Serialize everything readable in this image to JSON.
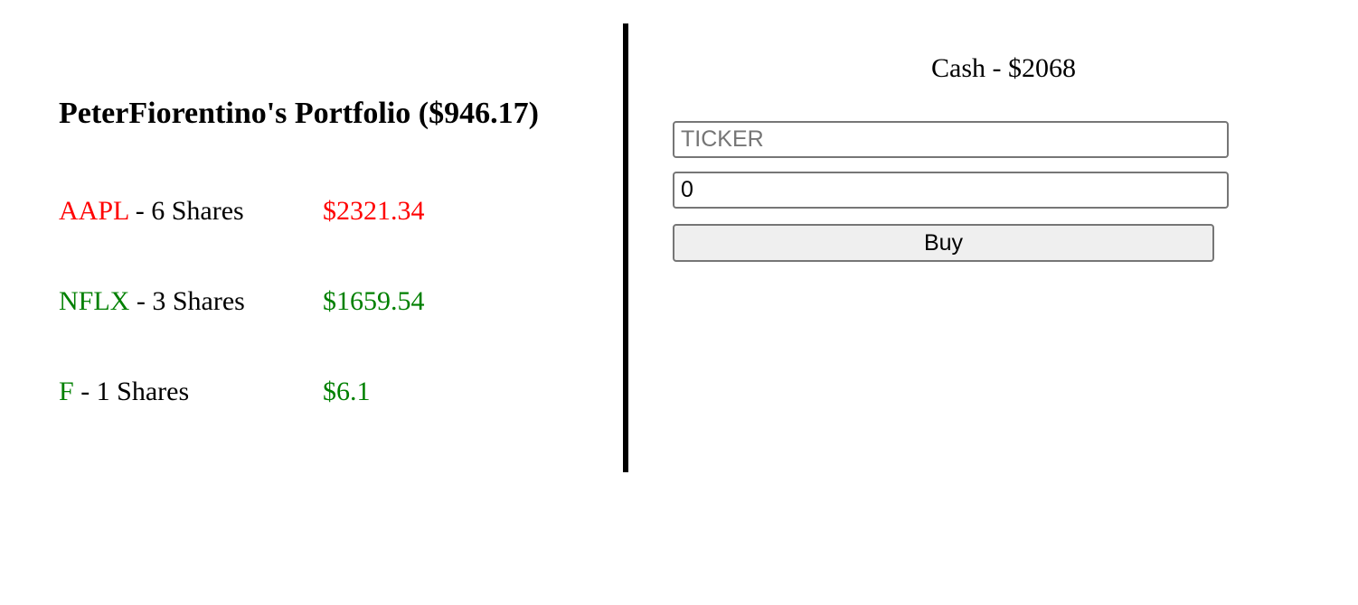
{
  "portfolio": {
    "title": "PeterFiorentino's Portfolio ($946.17)",
    "holdings": [
      {
        "ticker": "AAPL",
        "shares_text": " - 6 Shares",
        "value": "$2321.34",
        "color": "#ff0000"
      },
      {
        "ticker": "NFLX",
        "shares_text": " - 3 Shares",
        "value": "$1659.54",
        "color": "#008000"
      },
      {
        "ticker": "F",
        "shares_text": " - 1 Shares",
        "value": "$6.1",
        "color": "#008000"
      }
    ]
  },
  "trade": {
    "cash_label": "Cash - $2068",
    "ticker_placeholder": "TICKER",
    "ticker_value": "",
    "quantity_value": "0",
    "buy_label": "Buy"
  }
}
